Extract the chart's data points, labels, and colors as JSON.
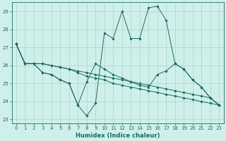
{
  "title": "",
  "xlabel": "Humidex (Indice chaleur)",
  "ylabel": "",
  "background_color": "#cff0ea",
  "grid_color": "#b0cfc9",
  "line_color": "#1a6b62",
  "xlim": [
    -0.5,
    23.5
  ],
  "ylim": [
    22.8,
    29.5
  ],
  "yticks": [
    23,
    24,
    25,
    26,
    27,
    28,
    29
  ],
  "xticks": [
    0,
    1,
    2,
    3,
    4,
    5,
    6,
    7,
    8,
    9,
    10,
    11,
    12,
    13,
    14,
    15,
    16,
    17,
    18,
    19,
    20,
    21,
    22,
    23
  ],
  "series": [
    [
      27.2,
      26.1,
      26.1,
      25.6,
      25.5,
      25.2,
      25.0,
      23.8,
      23.2,
      23.9,
      27.8,
      27.5,
      29.0,
      27.5,
      27.5,
      29.2,
      29.3,
      28.5,
      26.1,
      25.8,
      25.2,
      24.8,
      24.2,
      23.8
    ],
    [
      27.2,
      26.1,
      26.1,
      25.6,
      25.5,
      25.2,
      25.0,
      23.8,
      25.1,
      26.1,
      25.8,
      25.5,
      25.3,
      25.1,
      24.9,
      24.8,
      25.5,
      25.7,
      26.1,
      25.8,
      25.2,
      24.8,
      24.2,
      23.8
    ],
    [
      27.2,
      26.1,
      26.1,
      26.1,
      26.0,
      25.9,
      25.8,
      25.6,
      25.4,
      25.3,
      25.2,
      25.0,
      24.9,
      24.8,
      24.7,
      24.6,
      24.5,
      24.4,
      24.3,
      24.2,
      24.1,
      24.0,
      23.9,
      23.8
    ],
    [
      27.2,
      26.1,
      26.1,
      26.1,
      26.0,
      25.9,
      25.8,
      25.7,
      25.6,
      25.5,
      25.4,
      25.3,
      25.2,
      25.1,
      25.0,
      24.9,
      24.8,
      24.7,
      24.6,
      24.5,
      24.4,
      24.3,
      24.2,
      23.8
    ]
  ],
  "xlabel_fontsize": 6.0,
  "tick_fontsize": 5.0
}
